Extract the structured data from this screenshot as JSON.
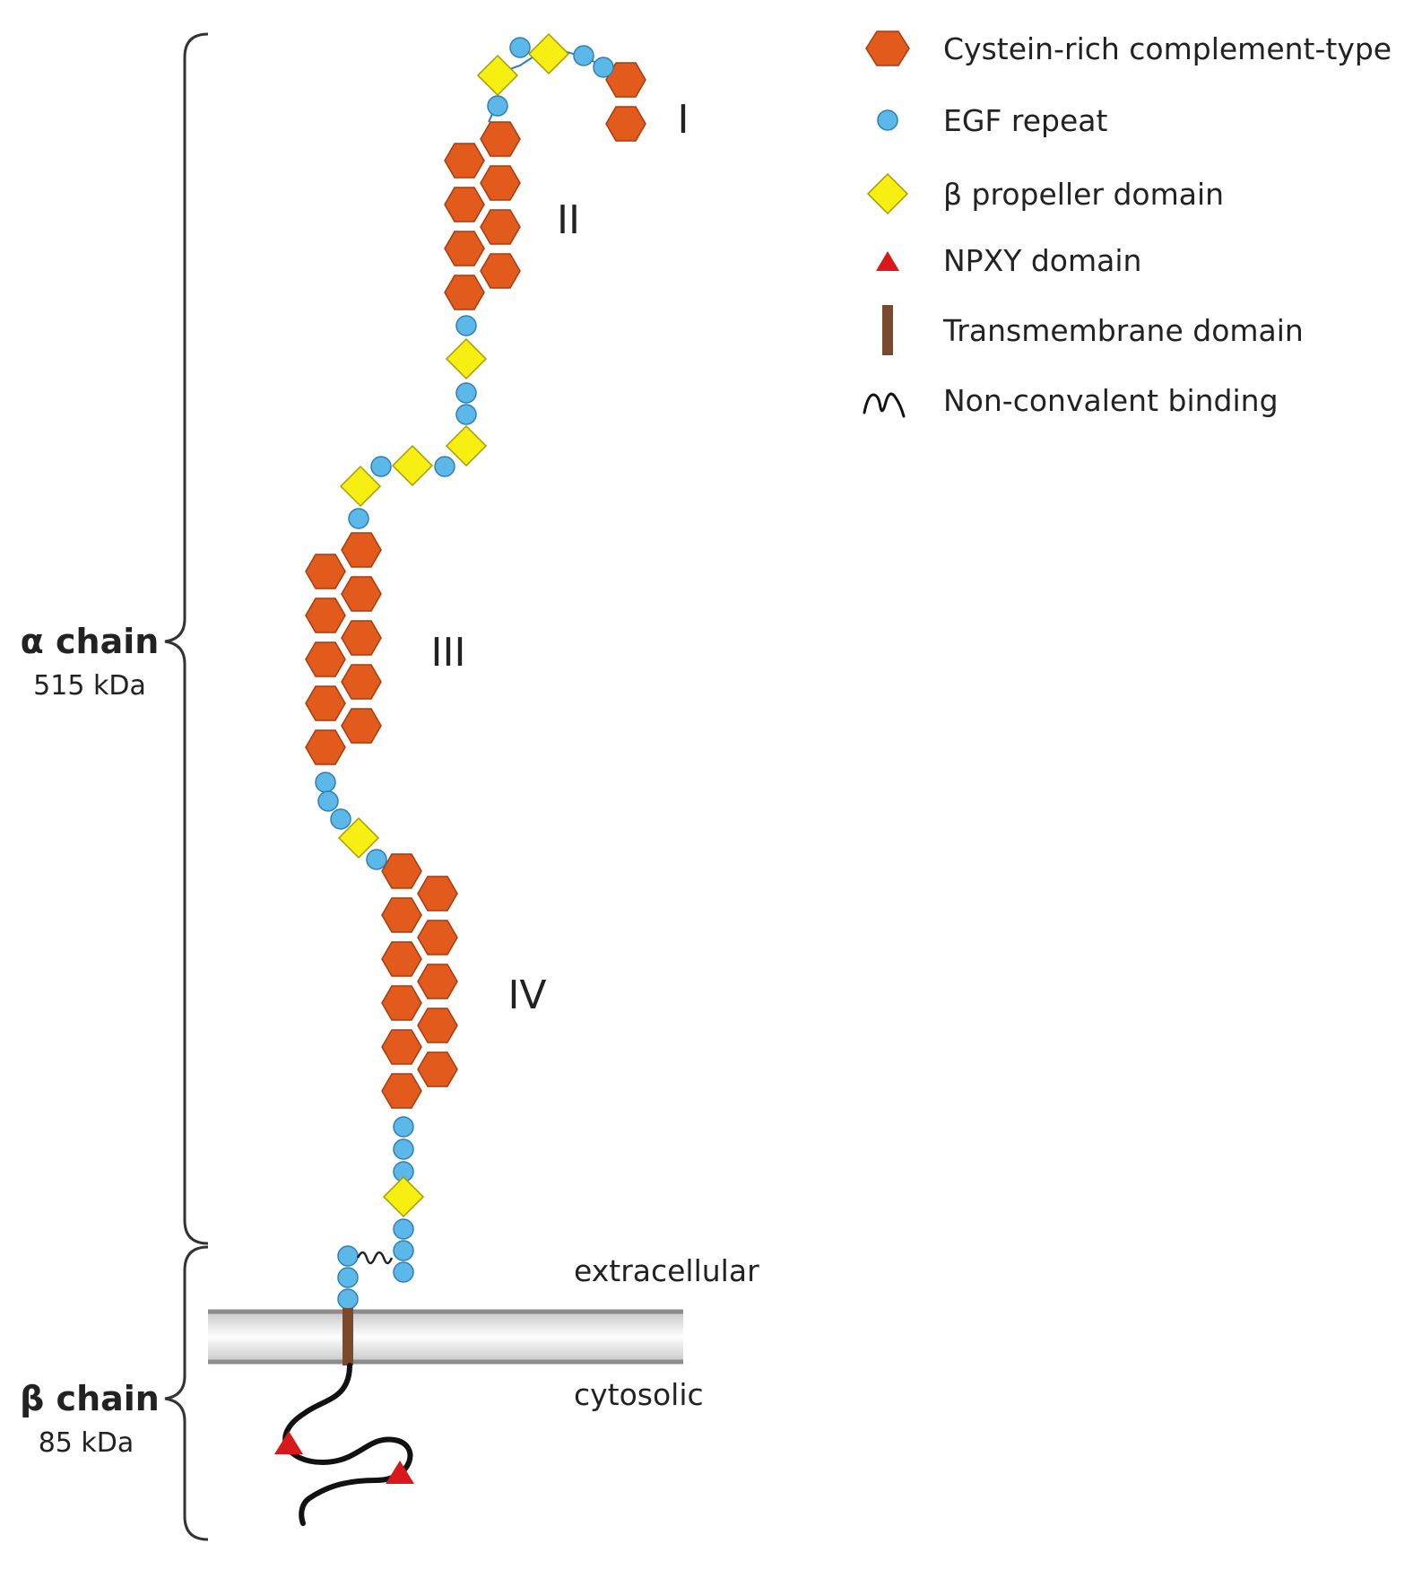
{
  "colors": {
    "cysteine": "#e25b1d",
    "cysteine_stroke": "#a63c0e",
    "egf": "#5cb8e8",
    "egf_stroke": "#2e7fb0",
    "propeller": "#f7ee12",
    "propeller_stroke": "#a59c00",
    "npxy": "#d7191c",
    "transmembrane": "#7a4a2e",
    "membrane": "#b8b8b8"
  },
  "legend": [
    {
      "icon": "hexagon-icon",
      "label": "Cystein-rich complement-type"
    },
    {
      "icon": "circle-icon",
      "label": "EGF repeat"
    },
    {
      "icon": "diamond-icon",
      "label": "β propeller domain"
    },
    {
      "icon": "triangle-icon",
      "label": "NPXY domain"
    },
    {
      "icon": "bar-icon",
      "label": "Transmembrane domain"
    },
    {
      "icon": "squiggle-icon",
      "label": "Non-convalent binding"
    }
  ],
  "clusters": [
    "I",
    "II",
    "III",
    "IV"
  ],
  "alpha": {
    "name": "α chain",
    "mass": "515 kDa"
  },
  "beta": {
    "name": "β chain",
    "mass": "85 kDa"
  },
  "regions": {
    "outside": "extracellular",
    "inside": "cytosolic"
  }
}
